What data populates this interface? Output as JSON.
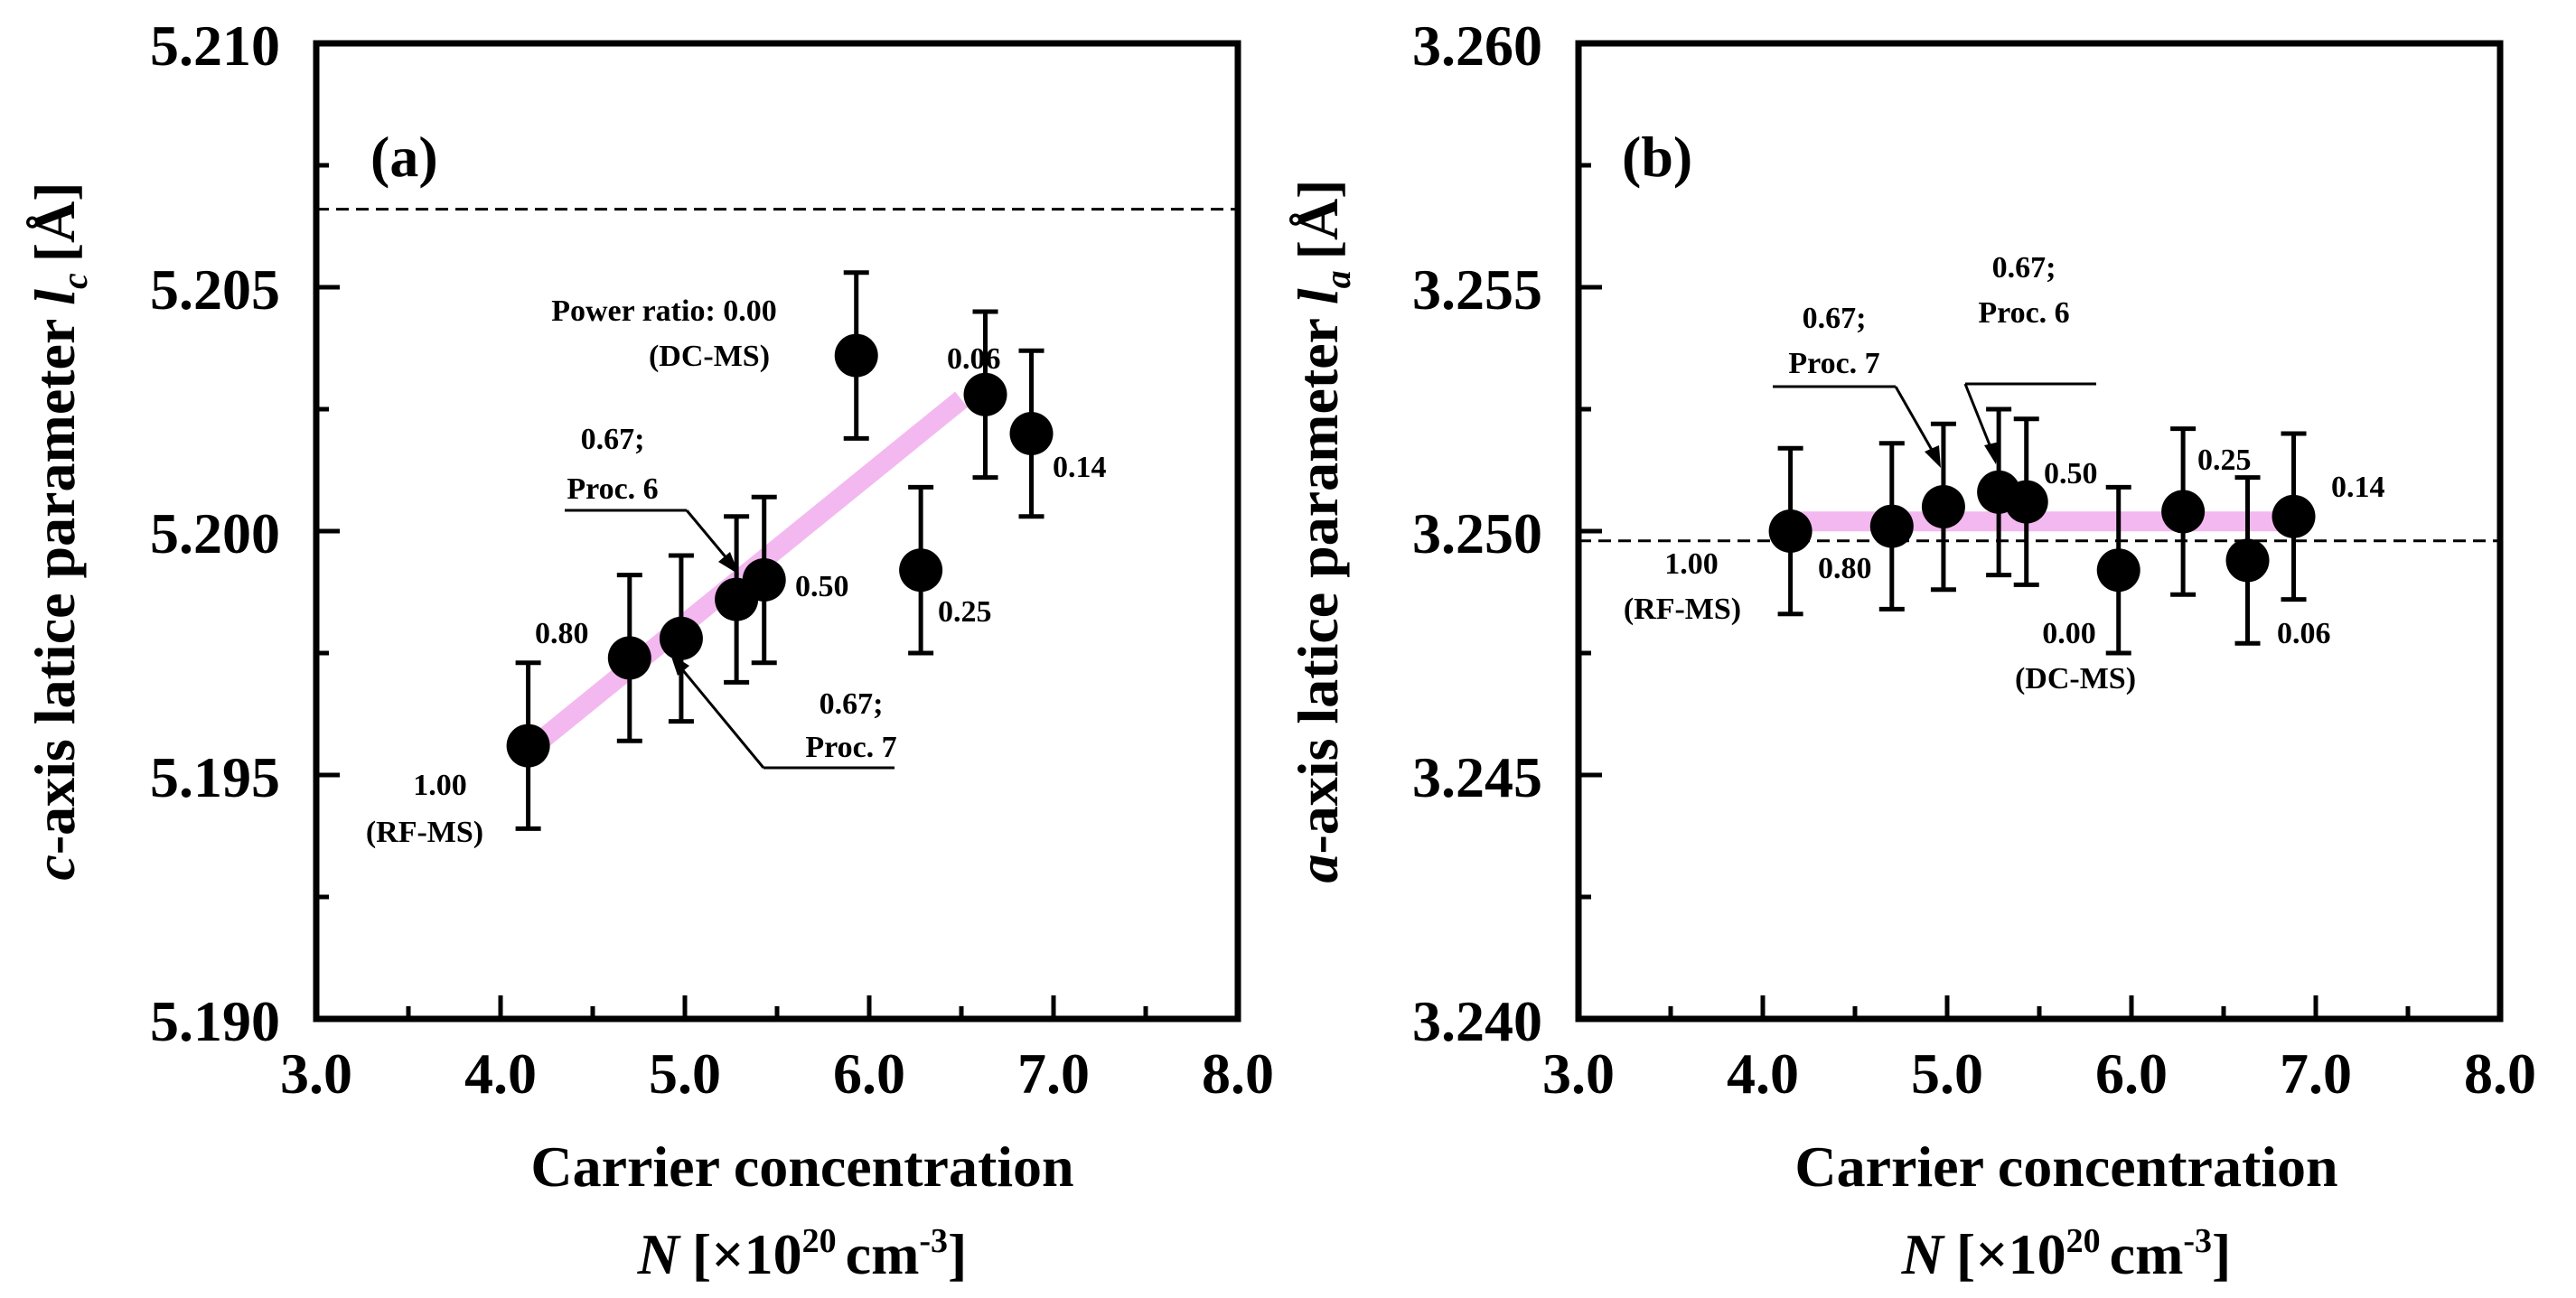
{
  "chart_data": [
    {
      "type": "scatter",
      "panel_label": "(a)",
      "ylabel_italic": "c",
      "ylabel_text": "-axis latice parameter ",
      "ylabel_symbol": "l",
      "ylabel_sub": "c",
      "ylabel_unit": "[Å]",
      "xlabel": "Carrier concentration",
      "xlabel_var": "N",
      "xlabel_unit_pre": "[×10",
      "xlabel_unit_exp": "20",
      "xlabel_unit_post": "cm",
      "xlabel_unit_post_exp": "-3",
      "xlabel_unit_close": "]",
      "xlim": [
        3.0,
        8.0
      ],
      "ylim": [
        5.19,
        5.21
      ],
      "xticks": [
        "3.0",
        "4.0",
        "5.0",
        "6.0",
        "7.0",
        "8.0"
      ],
      "yticks": [
        "5.190",
        "5.195",
        "5.200",
        "5.205",
        "5.210"
      ],
      "reference_line_y": 5.2066,
      "trend_line": [
        [
          4.15,
          5.1955
        ],
        [
          6.5,
          5.2027
        ]
      ],
      "points": [
        {
          "x": 4.15,
          "y": 5.1956,
          "err": 0.0017,
          "label": "1.00 (RF-MS)"
        },
        {
          "x": 4.7,
          "y": 5.1974,
          "err": 0.0017,
          "label": "0.80"
        },
        {
          "x": 4.98,
          "y": 5.1978,
          "err": 0.0017,
          "label": "0.67; Proc. 7"
        },
        {
          "x": 5.28,
          "y": 5.1986,
          "err": 0.0017,
          "label": "0.67; Proc. 6"
        },
        {
          "x": 5.43,
          "y": 5.199,
          "err": 0.0017,
          "label": "0.50"
        },
        {
          "x": 5.93,
          "y": 5.2036,
          "err": 0.0017,
          "label": "Power ratio: 0.00 (DC-MS)"
        },
        {
          "x": 6.28,
          "y": 5.1992,
          "err": 0.0017,
          "label": "0.25"
        },
        {
          "x": 6.63,
          "y": 5.2028,
          "err": 0.0017,
          "label": "0.06"
        },
        {
          "x": 6.88,
          "y": 5.202,
          "err": 0.0017,
          "label": "0.14"
        }
      ],
      "annotations": {
        "power_ratio": "Power ratio: 0.00",
        "dcms": "(DC-MS)",
        "v006": "0.06",
        "v014": "0.14",
        "p6_top": "0.67;",
        "p6_bot": "Proc. 6",
        "v050": "0.50",
        "v080": "0.80",
        "v025": "0.25",
        "p7_top": "0.67;",
        "p7_bot": "Proc. 7",
        "v100": "1.00",
        "rfms": "(RF-MS)"
      }
    },
    {
      "type": "scatter",
      "panel_label": "(b)",
      "ylabel_italic": "a",
      "ylabel_text": "-axis latice parameter ",
      "ylabel_symbol": "l",
      "ylabel_sub": "a",
      "ylabel_unit": "[Å]",
      "xlabel": "Carrier concentration",
      "xlabel_var": "N",
      "xlabel_unit_pre": "[×10",
      "xlabel_unit_exp": "20",
      "xlabel_unit_post": "cm",
      "xlabel_unit_post_exp": "-3",
      "xlabel_unit_close": "]",
      "xlim": [
        3.0,
        8.0
      ],
      "ylim": [
        3.24,
        3.26
      ],
      "xticks": [
        "3.0",
        "4.0",
        "5.0",
        "6.0",
        "7.0",
        "8.0"
      ],
      "yticks": [
        "3.240",
        "3.245",
        "3.250",
        "3.255",
        "3.260"
      ],
      "reference_line_y": 3.2498,
      "trend_line": [
        [
          4.15,
          3.2502
        ],
        [
          6.9,
          3.2502
        ]
      ],
      "points": [
        {
          "x": 4.15,
          "y": 3.25,
          "err": 0.0017,
          "label": "1.00 (RF-MS)"
        },
        {
          "x": 4.7,
          "y": 3.2501,
          "err": 0.0017,
          "label": "0.80"
        },
        {
          "x": 4.98,
          "y": 3.2505,
          "err": 0.0017,
          "label": "0.67; Proc. 7"
        },
        {
          "x": 5.28,
          "y": 3.2508,
          "err": 0.0017,
          "label": "0.67; Proc. 6"
        },
        {
          "x": 5.43,
          "y": 3.2506,
          "err": 0.0017,
          "label": "0.50"
        },
        {
          "x": 5.93,
          "y": 3.2492,
          "err": 0.0017,
          "label": "0.00 (DC-MS)"
        },
        {
          "x": 6.28,
          "y": 3.2504,
          "err": 0.0017,
          "label": "0.25"
        },
        {
          "x": 6.63,
          "y": 3.2494,
          "err": 0.0017,
          "label": "0.06"
        },
        {
          "x": 6.88,
          "y": 3.2503,
          "err": 0.0017,
          "label": "0.14"
        }
      ],
      "annotations": {
        "p7_top": "0.67;",
        "p7_bot": "Proc. 7",
        "p6_top": "0.67;",
        "p6_bot": "Proc. 6",
        "v050": "0.50",
        "v025": "0.25",
        "v014": "0.14",
        "v100": "1.00",
        "rfms": "(RF-MS)",
        "v080": "0.80",
        "v000": "0.00",
        "dcms": "(DC-MS)",
        "v006": "0.06"
      }
    }
  ],
  "colors": {
    "marker": "#000000",
    "trend": "#f4b8f0",
    "axis": "#000000"
  }
}
